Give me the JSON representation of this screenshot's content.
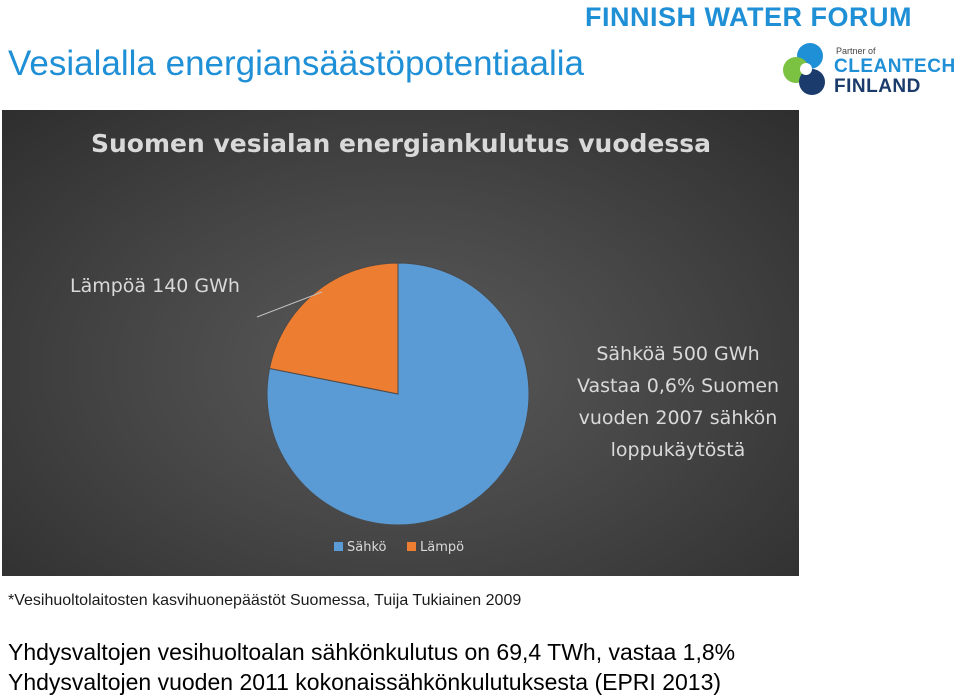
{
  "slide": {
    "title": "Vesialalla energiansäästöpotentiaalia",
    "brand": "FINNISH WATER FORUM",
    "partner": {
      "small": "Partner of",
      "line1": "CLEANTECH",
      "line2": "FINLAND"
    },
    "source_note": "*Vesihuoltolaitosten kasvihuonepäästöt Suomessa, Tuija Tukiainen 2009",
    "footer_lines": [
      "Yhdysvaltojen vesihuoltoalan sähkönkulutus on 69,4 TWh, vastaa 1,8%",
      "Yhdysvaltojen vuoden 2011 kokonaissähkönkulutuksesta (EPRI 2013)"
    ]
  },
  "chart_data": {
    "type": "pie",
    "title": "Suomen vesialan energiankulutus vuodessa",
    "unit": "GWh",
    "categories": [
      "Sähkö",
      "Lämpö"
    ],
    "values": [
      500,
      140
    ],
    "colors": [
      "#5b9bd5",
      "#ed7d31"
    ],
    "legend_position": "bottom",
    "annotations": {
      "lampo": "Lämpöä 140 GWh",
      "sahko_lines": [
        "Sähköä 500 GWh",
        "Vastaa 0,6% Suomen",
        "vuoden 2007 sähkön",
        "loppukäytöstä"
      ]
    }
  }
}
